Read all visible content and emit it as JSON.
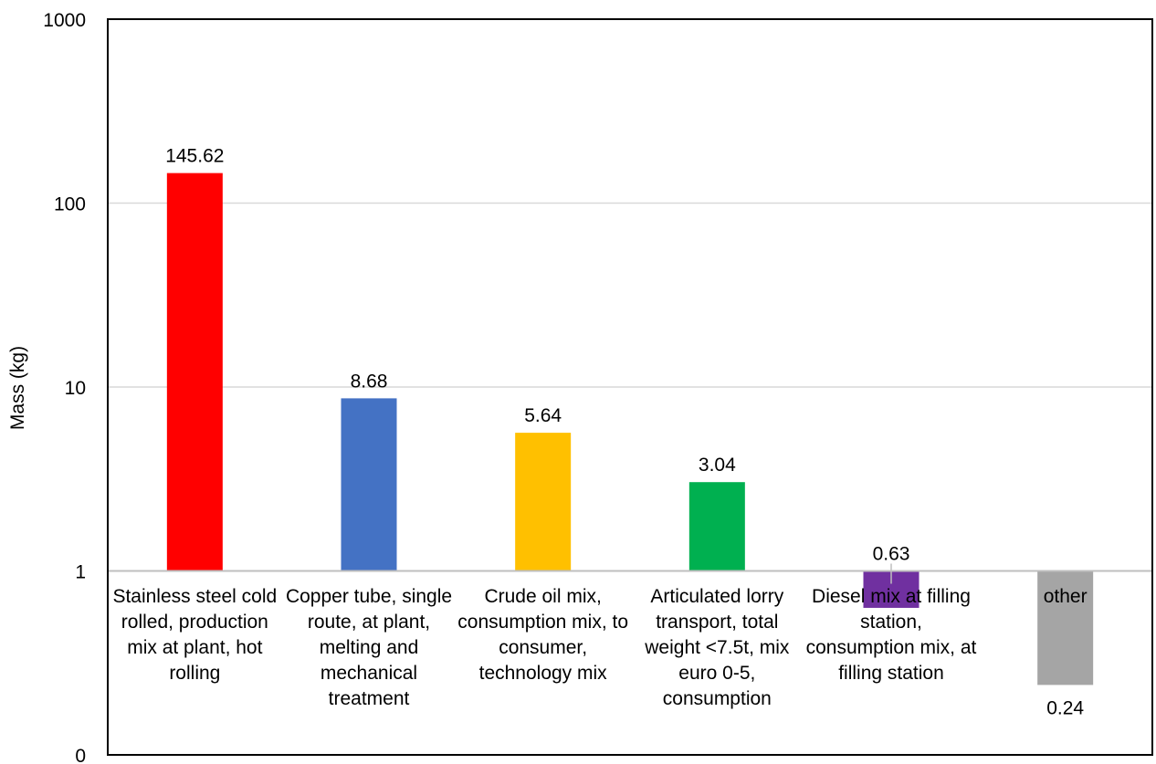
{
  "chart_data": {
    "type": "bar",
    "yscale": "log",
    "ylabel": "Mass (kg)",
    "ylim": [
      0.1,
      1000
    ],
    "yticks": [
      {
        "value": 1000,
        "label": "1000"
      },
      {
        "value": 100,
        "label": "100"
      },
      {
        "value": 10,
        "label": "10"
      },
      {
        "value": 1,
        "label": "1"
      },
      {
        "value": 0.1,
        "label": "0"
      }
    ],
    "grid": "horizontal",
    "categories": [
      "Stainless steel cold rolled, production mix at plant, hot rolling",
      "Copper tube, single route, at plant, melting and mechanical treatment",
      "Crude oil mix, consumption mix, to consumer, technology mix",
      "Articulated lorry transport, total weight <7.5t, mix euro 0-5, consumption",
      "Diesel mix at filling station, consumption mix, at filling station",
      "other"
    ],
    "values": [
      145.62,
      8.68,
      5.64,
      3.04,
      0.63,
      0.24
    ],
    "value_labels": [
      "145.62",
      "8.68",
      "5.64",
      "3.04",
      "0.63",
      "0.24"
    ],
    "colors": [
      "#ff0000",
      "#4472c4",
      "#ffc000",
      "#00b050",
      "#7030a0",
      "#a5a5a5"
    ]
  }
}
